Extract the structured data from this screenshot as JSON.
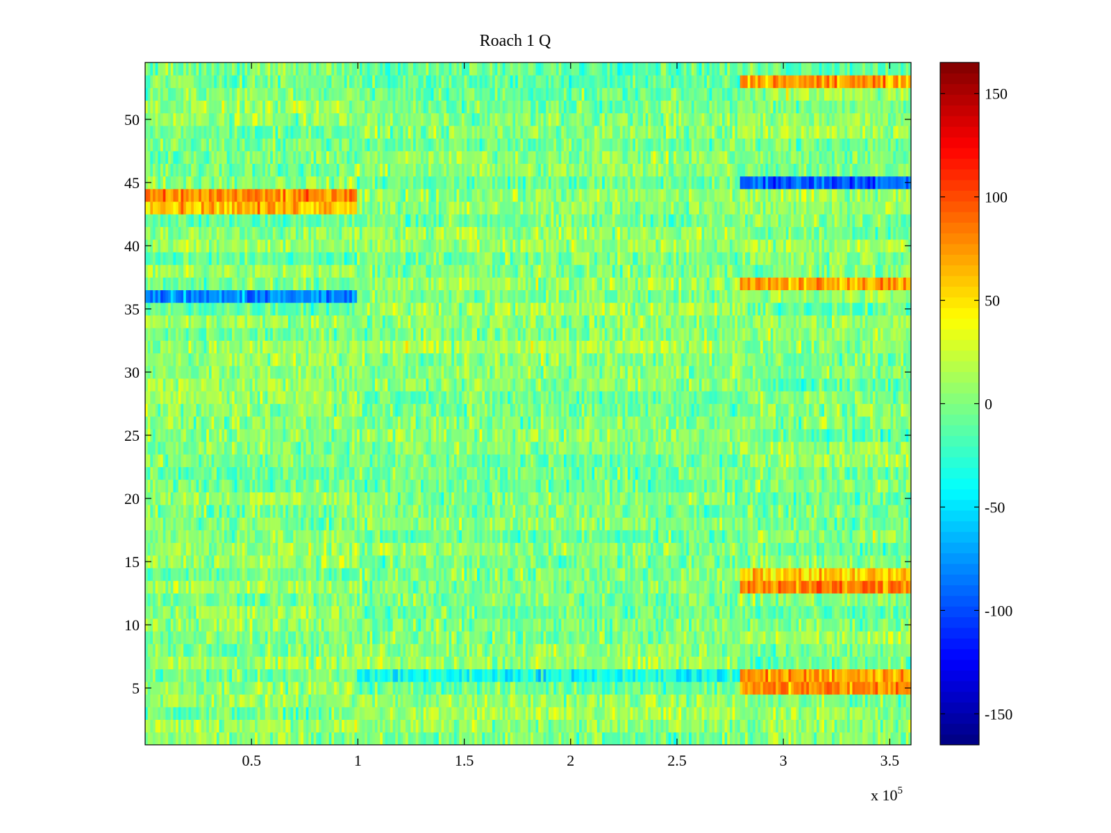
{
  "chart_data": {
    "type": "heatmap",
    "title": "Roach 1 Q",
    "xlabel": "",
    "ylabel": "",
    "x_multiplier_label": "x 10",
    "x_multiplier_exponent": "5",
    "xlim": [
      0,
      360000
    ],
    "ylim": [
      0.5,
      54.5
    ],
    "x_ticks": [
      0.5,
      1,
      1.5,
      2,
      2.5,
      3,
      3.5
    ],
    "x_tick_labels": [
      "0.5",
      "1",
      "1.5",
      "2",
      "2.5",
      "3",
      "3.5"
    ],
    "y_ticks": [
      5,
      10,
      15,
      20,
      25,
      30,
      35,
      40,
      45,
      50
    ],
    "y_tick_labels": [
      "5",
      "10",
      "15",
      "20",
      "25",
      "30",
      "35",
      "40",
      "45",
      "50"
    ],
    "rows": 54,
    "colormap": "jet",
    "clim": [
      -165,
      165
    ],
    "colorbar": {
      "ticks": [
        -150,
        -100,
        -50,
        0,
        50,
        100,
        150
      ],
      "tick_labels": [
        "-150",
        "-100",
        "-50",
        "0",
        "50",
        "100",
        "150"
      ]
    },
    "segments_x": [
      0,
      100000,
      280000,
      360000
    ],
    "row_segment_means": [
      {
        "row": 5,
        "means": [
          0,
          0,
          75
        ]
      },
      {
        "row": 6,
        "means": [
          0,
          -30,
          65
        ]
      },
      {
        "row": 13,
        "means": [
          0,
          0,
          75
        ]
      },
      {
        "row": 14,
        "means": [
          0,
          0,
          45
        ]
      },
      {
        "row": 36,
        "means": [
          -75,
          0,
          0
        ]
      },
      {
        "row": 37,
        "means": [
          0,
          0,
          75
        ]
      },
      {
        "row": 43,
        "means": [
          60,
          0,
          0
        ]
      },
      {
        "row": 44,
        "means": [
          75,
          0,
          0
        ]
      },
      {
        "row": 45,
        "means": [
          0,
          0,
          -95
        ]
      },
      {
        "row": 53,
        "means": [
          0,
          0,
          70
        ]
      }
    ],
    "grid": false,
    "legend": "colorbar-right"
  }
}
